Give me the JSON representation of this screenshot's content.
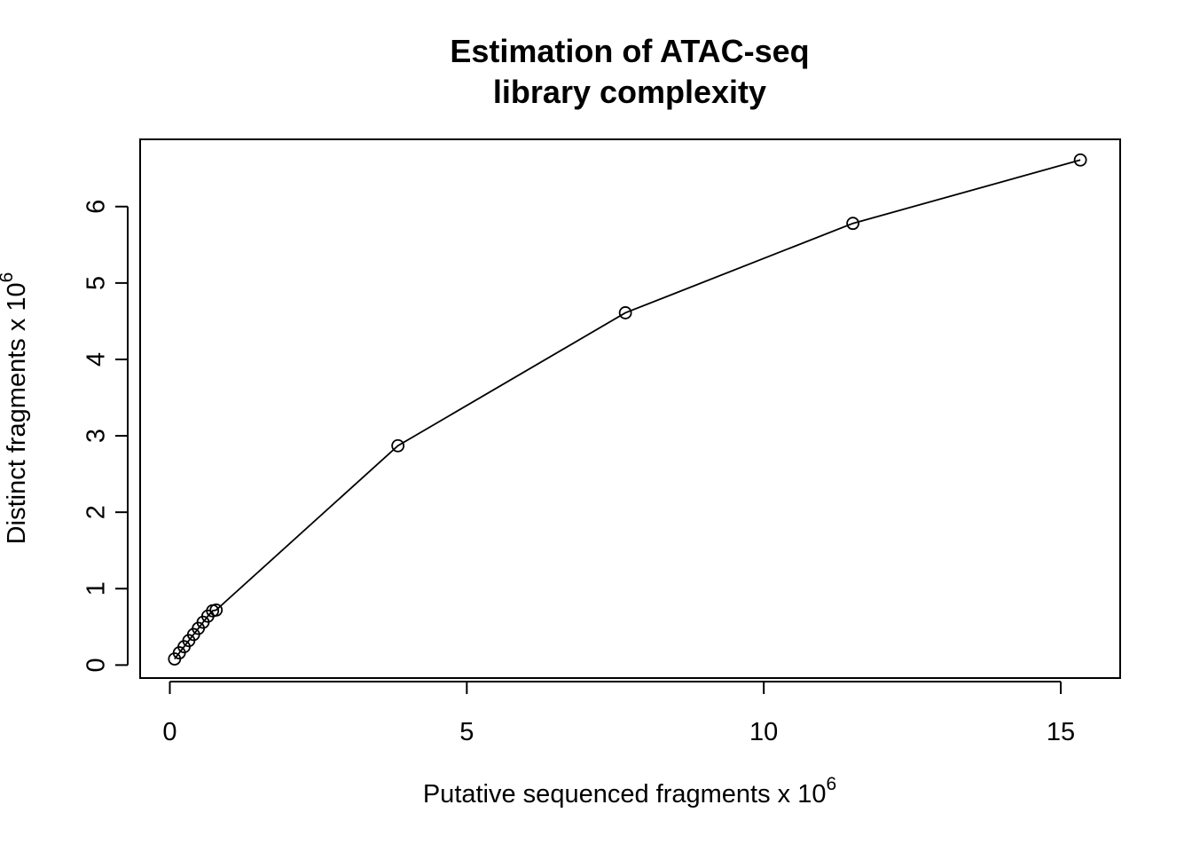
{
  "chart_data": {
    "type": "line",
    "title_lines": [
      "Estimation of ATAC-seq",
      "library complexity"
    ],
    "xlabel": {
      "text": "Putative sequenced fragments x 10",
      "superscript": "6"
    },
    "ylabel": {
      "text": "Distinct fragments x 10",
      "superscript": "6"
    },
    "xlim": [
      -0.5,
      16
    ],
    "ylim": [
      -0.17,
      6.88
    ],
    "x_ticks": [
      0,
      5,
      10,
      15
    ],
    "x_tick_labels": [
      "0",
      "5",
      "10",
      "15"
    ],
    "y_ticks": [
      0,
      1,
      2,
      3,
      4,
      5,
      6
    ],
    "y_tick_labels": [
      "0",
      "1",
      "2",
      "3",
      "4",
      "5",
      "6"
    ],
    "grid": false,
    "marker": "open-circle",
    "series": [
      {
        "x": [
          0.08,
          0.16,
          0.24,
          0.32,
          0.4,
          0.48,
          0.56,
          0.64,
          0.72,
          0.78,
          3.84,
          7.67,
          11.5,
          15.33
        ],
        "y": [
          0.08,
          0.16,
          0.24,
          0.32,
          0.4,
          0.48,
          0.56,
          0.64,
          0.71,
          0.72,
          2.87,
          4.61,
          5.78,
          6.61
        ]
      }
    ]
  }
}
